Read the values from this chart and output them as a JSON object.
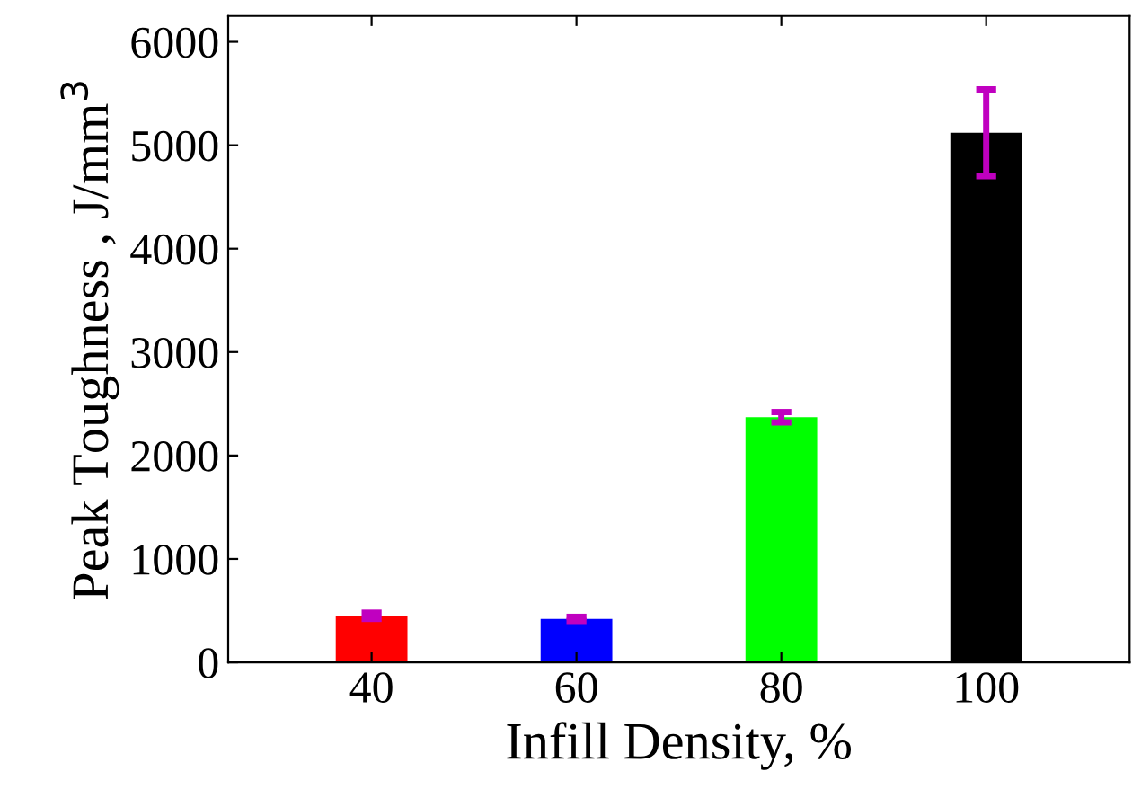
{
  "chart_data": {
    "type": "bar",
    "xlabel": "Infill Density, %",
    "ylabel": "Peak Toughness , J/mm$^{3}$",
    "categories": [
      "40",
      "60",
      "80",
      "100"
    ],
    "values": [
      450,
      420,
      2370,
      5120
    ],
    "colors": [
      "#ff0000",
      "#0000ff",
      "#00ff00",
      "#000000"
    ],
    "errors": [
      30,
      20,
      50,
      420
    ],
    "ylim": [
      0,
      6250
    ],
    "yticks": [
      0,
      1000,
      2000,
      3000,
      4000,
      5000,
      6000
    ],
    "grid": false,
    "legend": false
  }
}
